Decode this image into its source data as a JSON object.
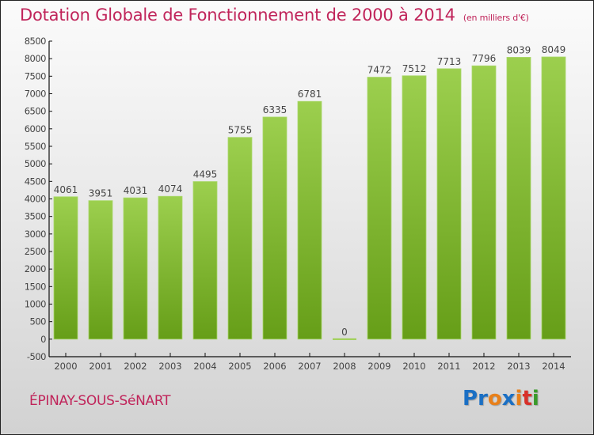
{
  "header": {
    "title": "Dotation Globale de Fonctionnement de 2000 à 2014",
    "subtitle": "(en milliers d'€)"
  },
  "footer": {
    "city": "ÉPINAY-SOUS-SéNART",
    "logo": {
      "letters": [
        {
          "char": "P",
          "color": "#1a6fc4"
        },
        {
          "char": "r",
          "color": "#1a6fc4"
        },
        {
          "char": "o",
          "color": "#e8801a"
        },
        {
          "char": "x",
          "color": "#1a6fc4"
        },
        {
          "char": "i",
          "color": "#e8801a"
        },
        {
          "char": "t",
          "color": "#d8302a"
        },
        {
          "char": "i",
          "color": "#3a9a2a"
        }
      ]
    }
  },
  "colors": {
    "accent": "#c0245a",
    "bar_top": "#9ccf4e",
    "bar_bottom": "#669e18",
    "axis": "#111111",
    "tick_text": "#444444"
  },
  "chart_data": {
    "type": "bar",
    "title": "Dotation Globale de Fonctionnement de 2000 à 2014",
    "subtitle": "(en milliers d'€)",
    "xlabel": "",
    "ylabel": "",
    "categories": [
      "2000",
      "2001",
      "2002",
      "2003",
      "2004",
      "2005",
      "2006",
      "2007",
      "2008",
      "2009",
      "2010",
      "2011",
      "2012",
      "2013",
      "2014"
    ],
    "values": [
      4061,
      3951,
      4031,
      4074,
      4495,
      5755,
      6335,
      6781,
      0,
      7472,
      7512,
      7713,
      7796,
      8039,
      8049
    ],
    "data_labels": [
      "4061",
      "3951",
      "4031",
      "4074",
      "4495",
      "5755",
      "6335",
      "6781",
      "0",
      "7472",
      "7512",
      "7713",
      "7796",
      "8039",
      "8049"
    ],
    "ylim": [
      -500,
      8500
    ],
    "yticks": [
      -500,
      0,
      500,
      1000,
      1500,
      2000,
      2500,
      3000,
      3500,
      4000,
      4500,
      5000,
      5500,
      6000,
      6500,
      7000,
      7500,
      8000,
      8500
    ],
    "ytick_labels": [
      "-500",
      "0",
      "500",
      "1000",
      "1500",
      "2000",
      "2500",
      "3000",
      "3500",
      "4000",
      "4500",
      "5000",
      "5500",
      "6000",
      "6500",
      "7000",
      "7500",
      "8000",
      "8500"
    ],
    "grid": false,
    "legend": "none"
  }
}
